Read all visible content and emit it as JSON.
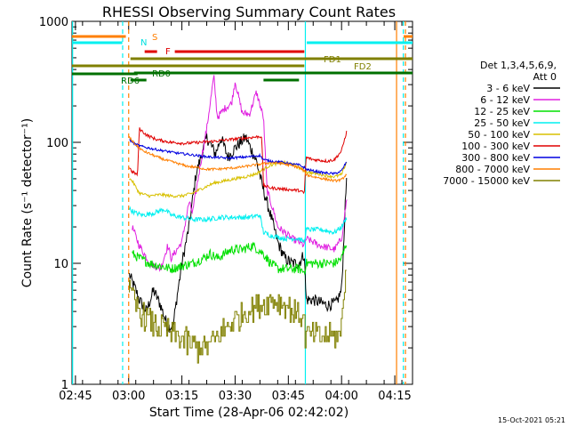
{
  "chart_data": {
    "type": "line",
    "title": "RHESSI Observing Summary Count Rates",
    "xlabel": "Start Time (28-Apr-06 02:42:02)",
    "ylabel": "Count Rate (s⁻¹ detector⁻¹)",
    "y_log": true,
    "ylim": [
      1,
      1000
    ],
    "xlim_minutes": [
      2.03,
      98.0
    ],
    "x_ticks": [
      "02:45",
      "03:00",
      "03:15",
      "03:30",
      "03:45",
      "04:00",
      "04:15"
    ],
    "y_ticks": [
      "1",
      "10",
      "100",
      "1000"
    ],
    "footer_date": "15-Oct-2021 05:21",
    "legend": {
      "header1": "Det 1,3,4,5,6,9,",
      "header2": "Att 0",
      "placement": "right"
    },
    "series": [
      {
        "name": "3 - 6 keV",
        "color": "#000000"
      },
      {
        "name": "6 - 12 keV",
        "color": "#e020e0"
      },
      {
        "name": "12 - 25 keV",
        "color": "#00e000"
      },
      {
        "name": "25 - 50 keV",
        "color": "#00f0f0"
      },
      {
        "name": "50 - 100 keV",
        "color": "#d8c000"
      },
      {
        "name": "100 - 300 keV",
        "color": "#e00000"
      },
      {
        "name": "300 - 800 keV",
        "color": "#0000e0"
      },
      {
        "name": "800 - 7000 keV",
        "color": "#ff7f00"
      },
      {
        "name": "7000 - 15000 keV",
        "color": "#808000"
      }
    ],
    "flag_labels": [
      {
        "text": "S",
        "color": "#ff7f00"
      },
      {
        "text": "N",
        "color": "#00e0e0"
      },
      {
        "text": "F",
        "color": "#e00000"
      },
      {
        "text": "FD1",
        "color": "#808000"
      },
      {
        "text": "FD2",
        "color": "#808000"
      },
      {
        "text": "RD0",
        "color": "#007000"
      },
      {
        "text": "RD6",
        "color": "#007000"
      }
    ]
  }
}
